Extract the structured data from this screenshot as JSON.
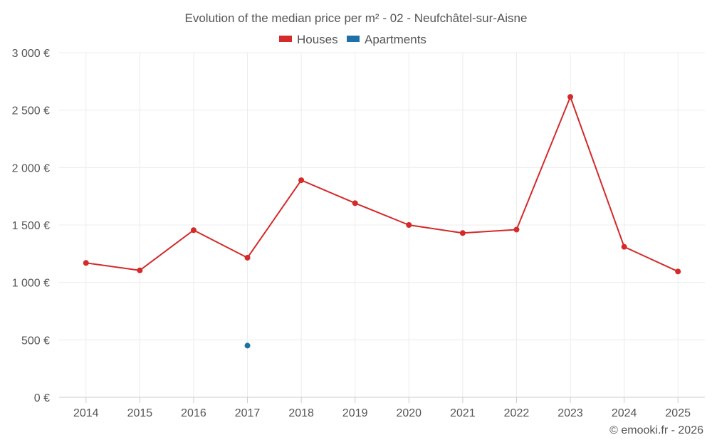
{
  "chart_data": {
    "type": "line",
    "title": "Evolution of the median price per m² - 02 - Neufchâtel-sur-Aisne",
    "categories": [
      "2014",
      "2015",
      "2016",
      "2017",
      "2018",
      "2019",
      "2020",
      "2021",
      "2022",
      "2023",
      "2024",
      "2025"
    ],
    "series": [
      {
        "name": "Houses",
        "color": "#d42a2a",
        "values": [
          1170,
          1105,
          1455,
          1215,
          1890,
          1690,
          1500,
          1430,
          1460,
          2615,
          1310,
          1095
        ]
      },
      {
        "name": "Apartments",
        "color": "#1f6fa8",
        "values": [
          null,
          null,
          null,
          450,
          null,
          null,
          null,
          null,
          null,
          null,
          null,
          null
        ]
      }
    ],
    "ylim": [
      0,
      3000
    ],
    "yticks": [
      {
        "value": 0,
        "label": "0 €"
      },
      {
        "value": 500,
        "label": "500 €"
      },
      {
        "value": 1000,
        "label": "1 000 €"
      },
      {
        "value": 1500,
        "label": "1 500 €"
      },
      {
        "value": 2000,
        "label": "2 000 €"
      },
      {
        "value": 2500,
        "label": "2 500 €"
      },
      {
        "value": 3000,
        "label": "3 000 €"
      }
    ],
    "xlabel": "",
    "ylabel": "",
    "grid": true,
    "legend_position": "top-center"
  },
  "credit": "© emooki.fr - 2026"
}
